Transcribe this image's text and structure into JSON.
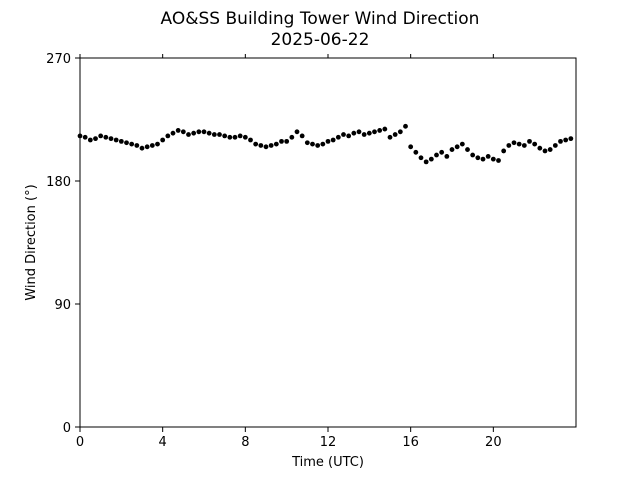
{
  "chart_data": {
    "type": "scatter",
    "title_line1": "AO&SS Building Tower Wind Direction",
    "title_line2": "2025-06-22",
    "xlabel": "Time (UTC)",
    "ylabel": "Wind Direction (°)",
    "xlim": [
      0,
      24
    ],
    "ylim": [
      0,
      270
    ],
    "xticks": [
      0,
      4,
      8,
      12,
      16,
      20
    ],
    "xtick_labels": [
      "0",
      "4",
      "8",
      "12",
      "16",
      "20"
    ],
    "yticks": [
      0,
      90,
      180,
      270
    ],
    "ytick_labels": [
      "0",
      "90",
      "180",
      "270"
    ],
    "grid": false,
    "point_color": "#000000",
    "series": [
      {
        "x": [
          0.0,
          0.25,
          0.5,
          0.75,
          1.0,
          1.25,
          1.5,
          1.75,
          2.0,
          2.25,
          2.5,
          2.75,
          3.0,
          3.25,
          3.5,
          3.75,
          4.0,
          4.25,
          4.5,
          4.75,
          5.0,
          5.25,
          5.5,
          5.75,
          6.0,
          6.25,
          6.5,
          6.75,
          7.0,
          7.25,
          7.5,
          7.75,
          8.0,
          8.25,
          8.5,
          8.75,
          9.0,
          9.25,
          9.5,
          9.75,
          10.0,
          10.25,
          10.5,
          10.75,
          11.0,
          11.25,
          11.5,
          11.75,
          12.0,
          12.25,
          12.5,
          12.75,
          13.0,
          13.25,
          13.5,
          13.75,
          14.0,
          14.25,
          14.5,
          14.75,
          15.0,
          15.25,
          15.5,
          15.75,
          16.0,
          16.25,
          16.5,
          16.75,
          17.0,
          17.25,
          17.5,
          17.75,
          18.0,
          18.25,
          18.5,
          18.75,
          19.0,
          19.25,
          19.5,
          19.75,
          20.0,
          20.25,
          20.5,
          20.75,
          21.0,
          21.25,
          21.5,
          21.75,
          22.0,
          22.25,
          22.5,
          22.75,
          23.0,
          23.25,
          23.5,
          23.75
        ],
        "y": [
          213,
          212,
          210,
          211,
          213,
          212,
          211,
          210,
          209,
          208,
          207,
          206,
          204,
          205,
          206,
          207,
          210,
          213,
          215,
          217,
          216,
          214,
          215,
          216,
          216,
          215,
          214,
          214,
          213,
          212,
          212,
          213,
          212,
          210,
          207,
          206,
          205,
          206,
          207,
          209,
          209,
          212,
          216,
          213,
          208,
          207,
          206,
          207,
          209,
          210,
          212,
          214,
          213,
          215,
          216,
          214,
          215,
          216,
          217,
          218,
          212,
          214,
          216,
          220,
          205,
          201,
          197,
          194,
          196,
          199,
          201,
          198,
          203,
          205,
          207,
          203,
          199,
          197,
          196,
          198,
          196,
          195,
          202,
          206,
          208,
          207,
          206,
          209,
          207,
          204,
          202,
          203,
          206,
          209,
          210,
          211
        ]
      }
    ]
  }
}
